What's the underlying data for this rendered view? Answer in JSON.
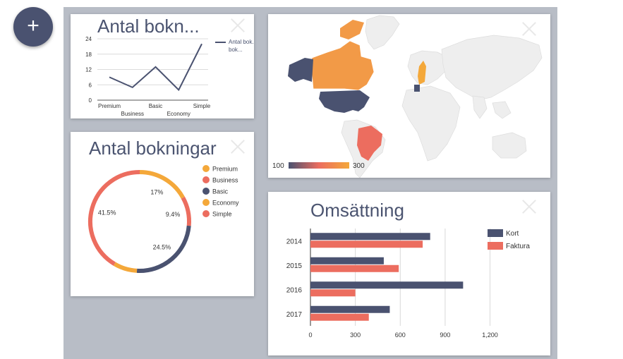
{
  "fab": {
    "label": "+"
  },
  "line_card": {
    "title": "Antal bokn...",
    "legend": "Antal bok...",
    "ticks": [
      "24",
      "18",
      "12",
      "6",
      "0"
    ],
    "cats_top": [
      "Premium",
      "Basic",
      "Simple"
    ],
    "cats_bottom": [
      "Business",
      "Economy"
    ]
  },
  "donut_card": {
    "title": "Antal bokningar",
    "legend": [
      "Premium",
      "Business",
      "Basic",
      "Economy",
      "Simple"
    ],
    "labels": [
      "17%",
      "9.4%",
      "24.5%",
      "41.5%"
    ]
  },
  "map_card": {
    "scale_min": "100",
    "scale_max": "300"
  },
  "bar_card": {
    "title": "Omsättning",
    "legend": [
      "Kort",
      "Faktura"
    ],
    "years": [
      "2014",
      "2015",
      "2016",
      "2017"
    ],
    "xticks": [
      "0",
      "300",
      "600",
      "900",
      "1,200"
    ]
  },
  "colors": {
    "navy": "#4a5270",
    "coral": "#ec6d5f",
    "amber": "#f4a83a",
    "orange": "#f29a47"
  },
  "chart_data": [
    {
      "type": "line",
      "title": "Antal bokn...",
      "categories": [
        "Premium",
        "Business",
        "Basic",
        "Economy",
        "Simple"
      ],
      "series": [
        {
          "name": "Antal bok...",
          "values": [
            9,
            5,
            13,
            4,
            22
          ]
        }
      ],
      "ylim": [
        0,
        24
      ],
      "grid": true,
      "legend": "right"
    },
    {
      "type": "pie",
      "title": "Antal bokningar",
      "labels": [
        "Premium",
        "Business",
        "Basic",
        "Economy",
        "Simple"
      ],
      "values": [
        17,
        9.4,
        24.5,
        7.6,
        41.5
      ],
      "legend": "right"
    },
    {
      "type": "bar",
      "title": "Omsättning",
      "orientation": "horizontal",
      "categories": [
        "2014",
        "2015",
        "2016",
        "2017"
      ],
      "series": [
        {
          "name": "Kort",
          "values": [
            800,
            490,
            1020,
            530
          ]
        },
        {
          "name": "Faktura",
          "values": [
            750,
            590,
            300,
            390
          ]
        }
      ],
      "xlim": [
        0,
        1320
      ],
      "grid": true,
      "legend": "top-right"
    }
  ]
}
